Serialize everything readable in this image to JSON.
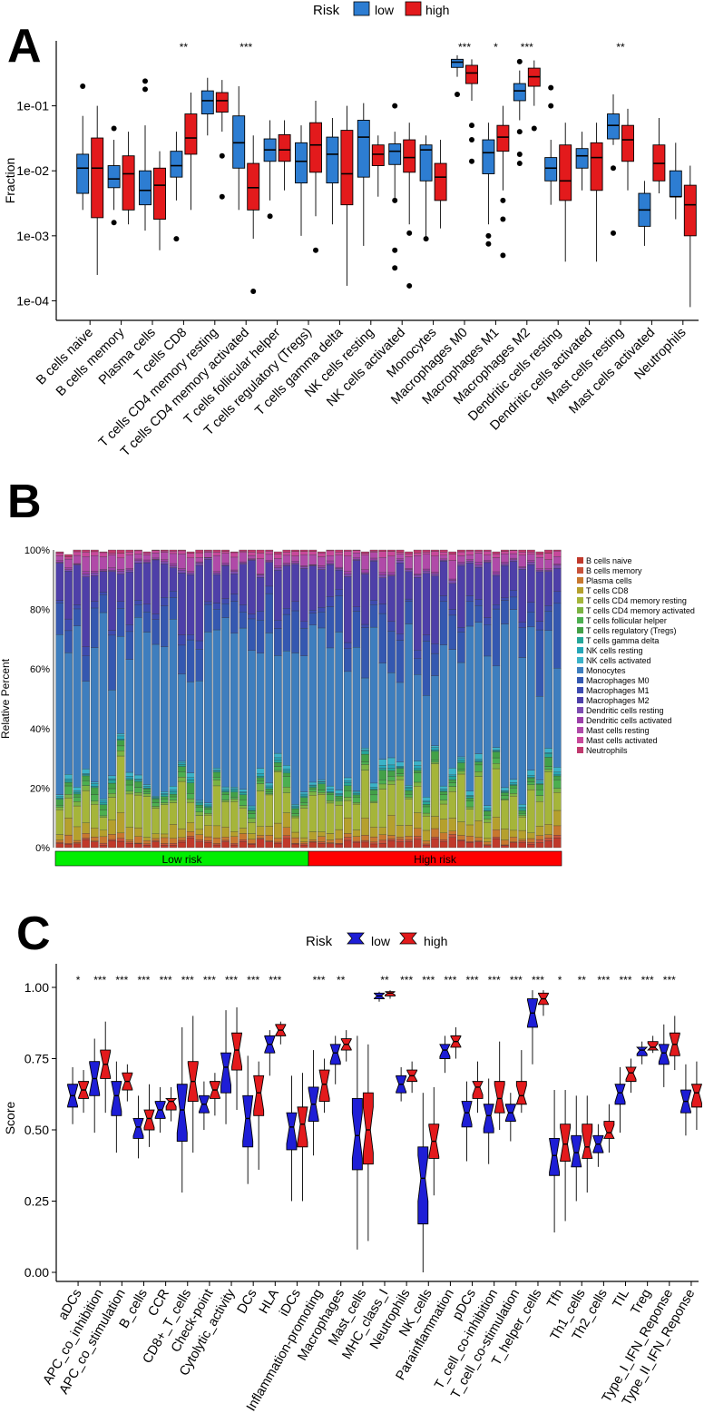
{
  "colors": {
    "low": "#2D7DD2",
    "high": "#E31A1C",
    "lowC": "#1E1ED6",
    "highC": "#E31A1C",
    "green": "#00EE00",
    "red": "#FF0000"
  },
  "chart_data": [
    {
      "panel": "A",
      "type": "boxplot",
      "legend_title": "Risk",
      "legend": [
        "low",
        "high"
      ],
      "ylabel": "Fraction",
      "yscale": "log10",
      "yticks": [
        "1e-04",
        "1e-03",
        "1e-02",
        "1e-01"
      ],
      "ylim": [
        5e-05,
        1.0
      ],
      "categories": [
        "B cells naive",
        "B cells memory",
        "Plasma cells",
        "T cells CD8",
        "T cells CD4 memory resting",
        "T cells CD4 memory activated",
        "T cells follicular helper",
        "T cells regulatory (Tregs)",
        "T cells gamma delta",
        "NK cells resting",
        "NK cells activated",
        "Monocytes",
        "Macrophages M0",
        "Macrophages M1",
        "Macrophages M2",
        "Dendritic cells resting",
        "Dendritic cells activated",
        "Mast cells resting",
        "Mast cells activated",
        "Neutrophils"
      ],
      "sig": [
        "",
        "",
        "",
        "**",
        "",
        "***",
        "",
        "",
        "",
        "",
        "",
        "",
        "***",
        "*",
        "***",
        "",
        "",
        "**",
        "",
        ""
      ],
      "low": [
        {
          "wl": 0.0025,
          "q1": 0.0045,
          "med": 0.011,
          "q3": 0.018,
          "wh": 0.07,
          "out": [
            0.2
          ]
        },
        {
          "wl": 0.0025,
          "q1": 0.0055,
          "med": 0.0075,
          "q3": 0.012,
          "wh": 0.03,
          "out": [
            0.0016,
            0.045
          ]
        },
        {
          "wl": 0.0012,
          "q1": 0.003,
          "med": 0.005,
          "q3": 0.01,
          "wh": 0.05,
          "out": [
            0.18,
            0.24
          ]
        },
        {
          "wl": 0.0035,
          "q1": 0.008,
          "med": 0.012,
          "q3": 0.02,
          "wh": 0.04,
          "out": [
            0.0009
          ]
        },
        {
          "wl": 0.035,
          "q1": 0.075,
          "med": 0.12,
          "q3": 0.17,
          "wh": 0.27,
          "out": []
        },
        {
          "wl": 0.0025,
          "q1": 0.011,
          "med": 0.027,
          "q3": 0.07,
          "wh": 0.2,
          "out": []
        },
        {
          "wl": 0.0035,
          "q1": 0.014,
          "med": 0.021,
          "q3": 0.031,
          "wh": 0.06,
          "out": [
            0.002
          ]
        },
        {
          "wl": 0.001,
          "q1": 0.0065,
          "med": 0.014,
          "q3": 0.027,
          "wh": 0.05,
          "out": []
        },
        {
          "wl": 0.0015,
          "q1": 0.0065,
          "med": 0.018,
          "q3": 0.033,
          "wh": 0.065,
          "out": []
        },
        {
          "wl": 0.0007,
          "q1": 0.008,
          "med": 0.033,
          "q3": 0.06,
          "wh": 0.11,
          "out": []
        },
        {
          "wl": 0.0035,
          "q1": 0.0125,
          "med": 0.02,
          "q3": 0.026,
          "wh": 0.04,
          "out": [
            0.0035,
            0.0006,
            0.00032,
            0.1
          ]
        },
        {
          "wl": 0.0009,
          "q1": 0.007,
          "med": 0.021,
          "q3": 0.025,
          "wh": 0.035,
          "out": [
            0.0009
          ]
        },
        {
          "wl": 0.28,
          "q1": 0.39,
          "med": 0.47,
          "q3": 0.52,
          "wh": 0.6,
          "out": [
            0.15
          ]
        },
        {
          "wl": 0.0015,
          "q1": 0.009,
          "med": 0.019,
          "q3": 0.03,
          "wh": 0.055,
          "out": [
            0.001,
            0.00075
          ]
        },
        {
          "wl": 0.06,
          "q1": 0.12,
          "med": 0.17,
          "q3": 0.22,
          "wh": 0.35,
          "out": [
            0.04,
            0.018,
            0.013,
            0.48
          ]
        },
        {
          "wl": 0.003,
          "q1": 0.007,
          "med": 0.011,
          "q3": 0.016,
          "wh": 0.03,
          "out": [
            0.19,
            0.1
          ]
        },
        {
          "wl": 0.005,
          "q1": 0.011,
          "med": 0.017,
          "q3": 0.022,
          "wh": 0.04,
          "out": []
        },
        {
          "wl": 0.025,
          "q1": 0.031,
          "med": 0.05,
          "q3": 0.075,
          "wh": 0.15,
          "out": [
            0.011,
            0.0011
          ]
        },
        {
          "wl": 0.0007,
          "q1": 0.0014,
          "med": 0.0025,
          "q3": 0.0045,
          "wh": 0.007,
          "out": []
        },
        {
          "wl": 0.0018,
          "q1": 0.004,
          "med": 0.004,
          "q3": 0.01,
          "wh": 0.027,
          "out": []
        }
      ],
      "high": [
        {
          "wl": 0.00025,
          "q1": 0.0019,
          "med": 0.011,
          "q3": 0.032,
          "wh": 0.1,
          "out": []
        },
        {
          "wl": 0.0015,
          "q1": 0.0025,
          "med": 0.009,
          "q3": 0.017,
          "wh": 0.04,
          "out": []
        },
        {
          "wl": 0.0006,
          "q1": 0.0018,
          "med": 0.006,
          "q3": 0.011,
          "wh": 0.02,
          "out": []
        },
        {
          "wl": 0.0025,
          "q1": 0.018,
          "med": 0.032,
          "q3": 0.075,
          "wh": 0.16,
          "out": []
        },
        {
          "wl": 0.04,
          "q1": 0.08,
          "med": 0.12,
          "q3": 0.16,
          "wh": 0.25,
          "out": [
            0.017,
            0.004
          ]
        },
        {
          "wl": 0.0009,
          "q1": 0.0025,
          "med": 0.0055,
          "q3": 0.013,
          "wh": 0.035,
          "out": [
            0.00014
          ]
        },
        {
          "wl": 0.005,
          "q1": 0.014,
          "med": 0.021,
          "q3": 0.036,
          "wh": 0.06,
          "out": []
        },
        {
          "wl": 0.002,
          "q1": 0.0095,
          "med": 0.025,
          "q3": 0.055,
          "wh": 0.12,
          "out": [
            0.0006
          ]
        },
        {
          "wl": 0.00017,
          "q1": 0.003,
          "med": 0.009,
          "q3": 0.042,
          "wh": 0.1,
          "out": []
        },
        {
          "wl": 0.004,
          "q1": 0.012,
          "med": 0.018,
          "q3": 0.025,
          "wh": 0.035,
          "out": []
        },
        {
          "wl": 0.0015,
          "q1": 0.0095,
          "med": 0.016,
          "q3": 0.03,
          "wh": 0.055,
          "out": [
            0.0011,
            0.00017
          ]
        },
        {
          "wl": 0.0013,
          "q1": 0.0035,
          "med": 0.008,
          "q3": 0.013,
          "wh": 0.03,
          "out": []
        },
        {
          "wl": 0.12,
          "q1": 0.22,
          "med": 0.32,
          "q3": 0.42,
          "wh": 0.52,
          "out": [
            0.014,
            0.03,
            0.05
          ]
        },
        {
          "wl": 0.005,
          "q1": 0.02,
          "med": 0.033,
          "q3": 0.05,
          "wh": 0.1,
          "out": [
            0.0035,
            0.0018,
            0.0005
          ]
        },
        {
          "wl": 0.1,
          "q1": 0.2,
          "med": 0.28,
          "q3": 0.38,
          "wh": 0.5,
          "out": [
            0.045
          ]
        },
        {
          "wl": 0.0004,
          "q1": 0.0035,
          "med": 0.007,
          "q3": 0.025,
          "wh": 0.055,
          "out": []
        },
        {
          "wl": 0.0004,
          "q1": 0.005,
          "med": 0.016,
          "q3": 0.027,
          "wh": 0.055,
          "out": []
        },
        {
          "wl": 0.005,
          "q1": 0.014,
          "med": 0.03,
          "q3": 0.05,
          "wh": 0.09,
          "out": []
        },
        {
          "wl": 0.0045,
          "q1": 0.007,
          "med": 0.013,
          "q3": 0.025,
          "wh": 0.065,
          "out": []
        },
        {
          "wl": 8e-05,
          "q1": 0.001,
          "med": 0.003,
          "q3": 0.006,
          "wh": 0.012,
          "out": []
        }
      ]
    },
    {
      "panel": "B",
      "type": "stacked_bar",
      "ylabel": "Relative Percent",
      "yticks": [
        "0%",
        "20%",
        "40%",
        "60%",
        "80%",
        "100%"
      ],
      "n_low": 29,
      "n_high": 29,
      "groups": [
        "Low risk",
        "High risk"
      ],
      "legend": [
        "B cells naive",
        "B cells memory",
        "Plasma cells",
        "T cells CD8",
        "T cells CD4 memory resting",
        "T cells CD4 memory activated",
        "T cells follicular helper",
        "T cells regulatory (Tregs)",
        "T cells gamma delta",
        "NK cells resting",
        "NK cells activated",
        "Monocytes",
        "Macrophages M0",
        "Macrophages M1",
        "Macrophages M2",
        "Dendritic cells resting",
        "Dendritic cells activated",
        "Mast cells resting",
        "Mast cells activated",
        "Neutrophils"
      ],
      "legend_colors": [
        "#C0392B",
        "#C8523A",
        "#C8782F",
        "#B5A02D",
        "#A5B53A",
        "#7CB342",
        "#4CAF50",
        "#43A047",
        "#26A69A",
        "#26A6B8",
        "#3BB2C8",
        "#3E7EBE",
        "#3558B0",
        "#3E4BB0",
        "#4E3FA8",
        "#7D4CB0",
        "#9C3FA8",
        "#B04AA8",
        "#C8489A",
        "#C0396E"
      ],
      "mean_percent": [
        1.5,
        0.5,
        1.5,
        3,
        10,
        1,
        1.5,
        1.5,
        0.5,
        0.5,
        1,
        45,
        10,
        2,
        14,
        0.5,
        0.5,
        3,
        1,
        0.5
      ]
    },
    {
      "panel": "C",
      "type": "notched_boxplot",
      "legend_title": "Risk",
      "legend": [
        "low",
        "high"
      ],
      "ylabel": "Score",
      "yticks": [
        "0.00",
        "0.25",
        "0.50",
        "0.75",
        "1.00"
      ],
      "ylim": [
        -0.02,
        1.05
      ],
      "categories": [
        "aDCs",
        "APC_co_inhibition",
        "APC_co_stimulation",
        "B_cells",
        "CCR",
        "CD8+_T_cells",
        "Check-point",
        "Cytolytic_activity",
        "DCs",
        "HLA",
        "iDCs",
        "Inflammation-promoting",
        "Macrophages",
        "Mast_cells",
        "MHC_class_I",
        "Neutrophils",
        "NK_cells",
        "Parainflammation",
        "pDCs",
        "T_cell_co-inhibition",
        "T_cell_co-stimulation",
        "T_helper_cells",
        "Tfh",
        "Th1_cells",
        "Th2_cells",
        "TIL",
        "Treg",
        "Type_I_IFN_Reponse",
        "Type_II_IFN_Reponse"
      ],
      "sig": [
        "*",
        "***",
        "***",
        "***",
        "***",
        "***",
        "***",
        "***",
        "***",
        "***",
        "",
        "***",
        "**",
        "",
        "**",
        "***",
        "***",
        "***",
        "***",
        "***",
        "***",
        "***",
        "*",
        "**",
        "***",
        "***",
        "***",
        "***",
        ""
      ],
      "low": [
        {
          "wl": 0.52,
          "q1": 0.58,
          "med": 0.62,
          "q3": 0.66,
          "wh": 0.72
        },
        {
          "wl": 0.49,
          "q1": 0.62,
          "med": 0.68,
          "q3": 0.74,
          "wh": 0.82
        },
        {
          "wl": 0.42,
          "q1": 0.55,
          "med": 0.62,
          "q3": 0.67,
          "wh": 0.74
        },
        {
          "wl": 0.4,
          "q1": 0.47,
          "med": 0.51,
          "q3": 0.54,
          "wh": 0.62
        },
        {
          "wl": 0.49,
          "q1": 0.54,
          "med": 0.57,
          "q3": 0.6,
          "wh": 0.65
        },
        {
          "wl": 0.28,
          "q1": 0.46,
          "med": 0.57,
          "q3": 0.66,
          "wh": 0.86
        },
        {
          "wl": 0.5,
          "q1": 0.56,
          "med": 0.59,
          "q3": 0.62,
          "wh": 0.67
        },
        {
          "wl": 0.52,
          "q1": 0.63,
          "med": 0.72,
          "q3": 0.77,
          "wh": 0.92
        },
        {
          "wl": 0.31,
          "q1": 0.44,
          "med": 0.54,
          "q3": 0.62,
          "wh": 0.76
        },
        {
          "wl": 0.69,
          "q1": 0.77,
          "med": 0.8,
          "q3": 0.83,
          "wh": 0.85
        },
        {
          "wl": 0.25,
          "q1": 0.43,
          "med": 0.51,
          "q3": 0.56,
          "wh": 0.69
        },
        {
          "wl": 0.41,
          "q1": 0.53,
          "med": 0.59,
          "q3": 0.65,
          "wh": 0.78
        },
        {
          "wl": 0.66,
          "q1": 0.73,
          "med": 0.77,
          "q3": 0.8,
          "wh": 0.83
        },
        {
          "wl": 0.08,
          "q1": 0.36,
          "med": 0.48,
          "q3": 0.61,
          "wh": 0.83
        },
        {
          "wl": 0.95,
          "q1": 0.96,
          "med": 0.97,
          "q3": 0.98,
          "wh": 0.985
        },
        {
          "wl": 0.6,
          "q1": 0.63,
          "med": 0.66,
          "q3": 0.69,
          "wh": 0.72
        },
        {
          "wl": 0.0,
          "q1": 0.17,
          "med": 0.33,
          "q3": 0.44,
          "wh": 0.63
        },
        {
          "wl": 0.7,
          "q1": 0.75,
          "med": 0.78,
          "q3": 0.8,
          "wh": 0.83
        },
        {
          "wl": 0.39,
          "q1": 0.51,
          "med": 0.56,
          "q3": 0.6,
          "wh": 0.67
        },
        {
          "wl": 0.38,
          "q1": 0.49,
          "med": 0.55,
          "q3": 0.59,
          "wh": 0.68
        },
        {
          "wl": 0.46,
          "q1": 0.53,
          "med": 0.56,
          "q3": 0.59,
          "wh": 0.63
        },
        {
          "wl": 0.73,
          "q1": 0.86,
          "med": 0.91,
          "q3": 0.96,
          "wh": 0.99
        },
        {
          "wl": 0.14,
          "q1": 0.34,
          "med": 0.41,
          "q3": 0.47,
          "wh": 0.64
        },
        {
          "wl": 0.25,
          "q1": 0.37,
          "med": 0.42,
          "q3": 0.48,
          "wh": 0.62
        },
        {
          "wl": 0.37,
          "q1": 0.42,
          "med": 0.45,
          "q3": 0.48,
          "wh": 0.52
        },
        {
          "wl": 0.49,
          "q1": 0.59,
          "med": 0.63,
          "q3": 0.66,
          "wh": 0.72
        },
        {
          "wl": 0.73,
          "q1": 0.76,
          "med": 0.78,
          "q3": 0.79,
          "wh": 0.81
        },
        {
          "wl": 0.65,
          "q1": 0.73,
          "med": 0.77,
          "q3": 0.8,
          "wh": 0.87
        },
        {
          "wl": 0.48,
          "q1": 0.56,
          "med": 0.6,
          "q3": 0.64,
          "wh": 0.73
        }
      ],
      "high": [
        {
          "wl": 0.56,
          "q1": 0.61,
          "med": 0.64,
          "q3": 0.67,
          "wh": 0.71
        },
        {
          "wl": 0.56,
          "q1": 0.68,
          "med": 0.73,
          "q3": 0.78,
          "wh": 0.88
        },
        {
          "wl": 0.6,
          "q1": 0.64,
          "med": 0.67,
          "q3": 0.7,
          "wh": 0.73
        },
        {
          "wl": 0.44,
          "q1": 0.5,
          "med": 0.54,
          "q3": 0.57,
          "wh": 0.66
        },
        {
          "wl": 0.53,
          "q1": 0.57,
          "med": 0.6,
          "q3": 0.61,
          "wh": 0.65
        },
        {
          "wl": 0.42,
          "q1": 0.6,
          "med": 0.67,
          "q3": 0.74,
          "wh": 0.9
        },
        {
          "wl": 0.55,
          "q1": 0.61,
          "med": 0.64,
          "q3": 0.67,
          "wh": 0.7
        },
        {
          "wl": 0.57,
          "q1": 0.71,
          "med": 0.78,
          "q3": 0.84,
          "wh": 0.93
        },
        {
          "wl": 0.36,
          "q1": 0.55,
          "med": 0.63,
          "q3": 0.69,
          "wh": 0.74
        },
        {
          "wl": 0.8,
          "q1": 0.83,
          "med": 0.85,
          "q3": 0.87,
          "wh": 0.88
        },
        {
          "wl": 0.25,
          "q1": 0.44,
          "med": 0.52,
          "q3": 0.58,
          "wh": 0.7
        },
        {
          "wl": 0.56,
          "q1": 0.6,
          "med": 0.66,
          "q3": 0.71,
          "wh": 0.75
        },
        {
          "wl": 0.74,
          "q1": 0.78,
          "med": 0.8,
          "q3": 0.82,
          "wh": 0.85
        },
        {
          "wl": 0.11,
          "q1": 0.38,
          "med": 0.5,
          "q3": 0.63,
          "wh": 0.8
        },
        {
          "wl": 0.96,
          "q1": 0.97,
          "med": 0.98,
          "q3": 0.985,
          "wh": 0.99
        },
        {
          "wl": 0.63,
          "q1": 0.67,
          "med": 0.69,
          "q3": 0.71,
          "wh": 0.74
        },
        {
          "wl": 0.27,
          "q1": 0.4,
          "med": 0.46,
          "q3": 0.52,
          "wh": 0.65
        },
        {
          "wl": 0.75,
          "q1": 0.79,
          "med": 0.81,
          "q3": 0.83,
          "wh": 0.86
        },
        {
          "wl": 0.56,
          "q1": 0.61,
          "med": 0.65,
          "q3": 0.67,
          "wh": 0.74
        },
        {
          "wl": 0.5,
          "q1": 0.56,
          "med": 0.61,
          "q3": 0.67,
          "wh": 0.81
        },
        {
          "wl": 0.56,
          "q1": 0.59,
          "med": 0.62,
          "q3": 0.67,
          "wh": 0.78
        },
        {
          "wl": 0.9,
          "q1": 0.94,
          "med": 0.96,
          "q3": 0.98,
          "wh": 0.99
        },
        {
          "wl": 0.18,
          "q1": 0.39,
          "med": 0.45,
          "q3": 0.52,
          "wh": 0.64
        },
        {
          "wl": 0.28,
          "q1": 0.4,
          "med": 0.44,
          "q3": 0.52,
          "wh": 0.62
        },
        {
          "wl": 0.42,
          "q1": 0.47,
          "med": 0.49,
          "q3": 0.53,
          "wh": 0.59
        },
        {
          "wl": 0.63,
          "q1": 0.67,
          "med": 0.7,
          "q3": 0.72,
          "wh": 0.75
        },
        {
          "wl": 0.77,
          "q1": 0.78,
          "med": 0.79,
          "q3": 0.81,
          "wh": 0.83
        },
        {
          "wl": 0.71,
          "q1": 0.76,
          "med": 0.8,
          "q3": 0.84,
          "wh": 0.9
        },
        {
          "wl": 0.5,
          "q1": 0.58,
          "med": 0.63,
          "q3": 0.66,
          "wh": 0.74
        }
      ]
    }
  ],
  "panel_labels": [
    "A",
    "B",
    "C"
  ]
}
